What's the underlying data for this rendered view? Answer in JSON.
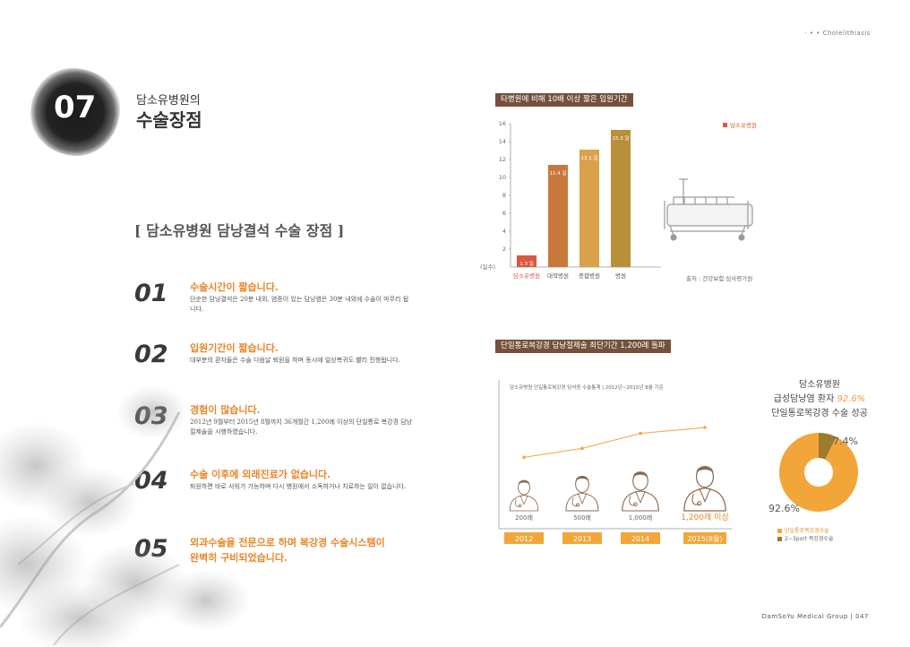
{
  "header": {
    "top_right": "· • • Cholelithiasis"
  },
  "chapter": {
    "number": "07",
    "subtitle": "담소유병원의",
    "title": "수술장점"
  },
  "section": {
    "heading": "[ 담소유병원 담낭결석 수술 장점 ]"
  },
  "items": [
    {
      "num": "01",
      "title": "수술시간이 짧습니다.",
      "desc": "단순한 담낭결석은 20분 내외, 염증이 있는 담낭염은 30분 내외에 수술이 마무리 됩니다."
    },
    {
      "num": "02",
      "title": "입원기간이 짧습니다.",
      "desc": "대부분의 환자들은 수술 다음날 퇴원을 하며 동시에 일상복귀도 빨리 진행됩니다."
    },
    {
      "num": "03",
      "title": "경험이 많습니다.",
      "desc": "2012년 9월부터 2015년 8월까지 36개월간 1,200례 이상의 단일통로 복강경 담낭절제술을 시행하였습니다."
    },
    {
      "num": "04",
      "title": "수술 이후에 외래진료가 없습니다.",
      "desc": "퇴원하면 바로 사워가 가능하며 다시 병원에서 소독하거나 치료하는 일이 없습니다."
    },
    {
      "num": "05",
      "title": "외과수술을 전문으로 하며 복강경 수술시스템이",
      "title2": "완벽히 구비되었습니다.",
      "desc": ""
    }
  ],
  "bar_chart": {
    "tag": "타병원에 비해 10배 이상 짧은 입원기간",
    "legend": "담소유병원",
    "y_unit": "(일수)",
    "source": "출처 : 건강보험 심사평가원"
  },
  "timeline": {
    "tag": "단일통로복강경 담낭절제술 최단기간 1,200례 돌파",
    "note": "담소유병원 단일통로복강경 담석증 수술통계 | 2012년~2015년 8월 기준"
  },
  "donut": {
    "head1": "담소유병원",
    "head2_pre": "급성담낭염 환자 ",
    "head2_hl": "92.6%",
    "head3": "단일통로복강경 수술 성공",
    "label_small": "7.4%",
    "label_big": "92.6%",
    "legend": [
      {
        "label": "단일통로복강경수술",
        "color": "#f2a63a"
      },
      {
        "label": "2~3port 복강경수술",
        "color": "#9c7a2e"
      }
    ]
  },
  "chart_data": [
    {
      "type": "bar",
      "title": "타병원에 비해 10배 이상 짧은 입원기간",
      "categories": [
        "담소유병원",
        "대학병원",
        "종합병원",
        "병원"
      ],
      "values": [
        1.3,
        11.4,
        13.1,
        15.3
      ],
      "value_labels": [
        "1.3 일",
        "11.4 일",
        "13.1 일",
        "15.3 일"
      ],
      "ylabel": "(일수)",
      "ylim": [
        0,
        16
      ],
      "yticks": [
        2,
        4,
        6,
        8,
        10,
        12,
        14,
        16
      ],
      "colors": [
        "#d9583e",
        "#c8783a",
        "#d9a24a",
        "#b8903a"
      ],
      "legend": "top-right",
      "highlight_label_color": "#d9583e"
    },
    {
      "type": "line",
      "title": "단일통로복강경 담낭절제술 최단기간 1,200례 돌파",
      "categories": [
        "2012",
        "2013",
        "2014",
        "2015(8월)"
      ],
      "value_labels": [
        "200례",
        "500례",
        "1,000례",
        "1,200례 이상"
      ],
      "values": [
        200,
        500,
        1000,
        1200
      ]
    },
    {
      "type": "pie",
      "labels": [
        "단일통로복강경수술",
        "2~3port 복강경수술"
      ],
      "values": [
        92.6,
        7.4
      ],
      "colors": [
        "#f2a63a",
        "#9c7a2e"
      ]
    }
  ],
  "footer": {
    "text": "DamSoYu Medical Group  |  047"
  }
}
